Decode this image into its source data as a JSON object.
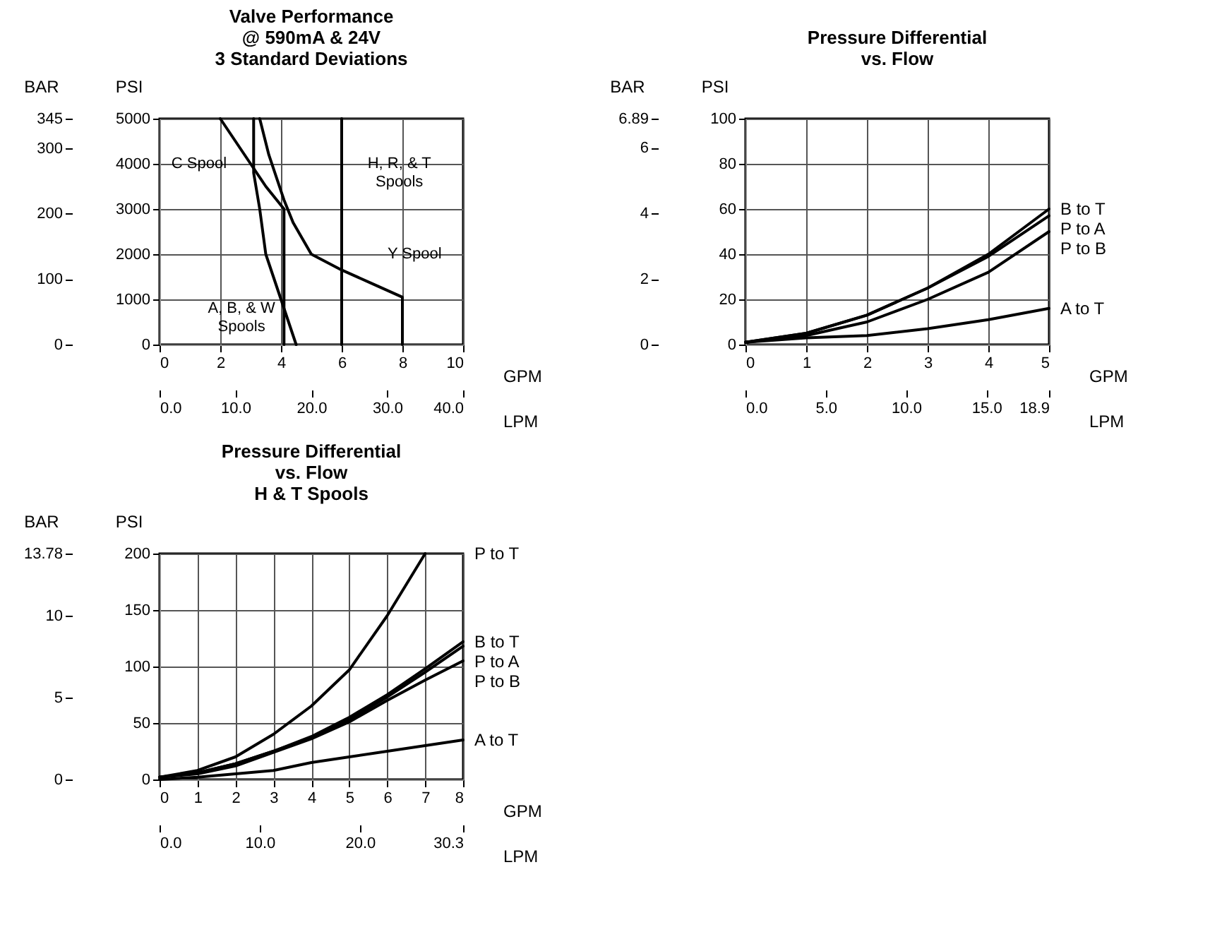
{
  "chart_data": [
    {
      "type": "line",
      "title": "Valve Performance\n@ 590mA & 24V\n3 Standard Deviations",
      "xlabel": "GPM",
      "x2label": "LPM",
      "ylabel": "PSI",
      "y2label": "BAR",
      "xlim": [
        0,
        10
      ],
      "xticks": [
        0,
        2,
        4,
        6,
        8,
        10
      ],
      "x2lim": [
        0,
        40
      ],
      "x2ticks": [
        {
          "value": 0,
          "label": "0.0"
        },
        {
          "value": 10,
          "label": "10.0"
        },
        {
          "value": 20,
          "label": "20.0"
        },
        {
          "value": 30,
          "label": "30.0"
        },
        {
          "value": 40,
          "label": "40.0"
        }
      ],
      "ylim": [
        0,
        5000
      ],
      "yticks": [
        0,
        1000,
        2000,
        3000,
        4000,
        5000
      ],
      "y2lim": [
        0,
        345
      ],
      "y2ticks": [
        0,
        100,
        200,
        300,
        345
      ],
      "grid": true,
      "legend": false,
      "series": [
        {
          "color": "#000000",
          "x": [
            2,
            2.5,
            3,
            3.5,
            4.1,
            4.1
          ],
          "values": [
            5000,
            4500,
            4000,
            3500,
            3000,
            0
          ]
        },
        {
          "color": "#000000",
          "x": [
            3.3,
            3.6,
            4.1,
            4.4,
            5,
            6,
            7,
            8,
            8
          ],
          "values": [
            5000,
            4200,
            3200,
            2700,
            2000,
            1650,
            1350,
            1050,
            0
          ]
        },
        {
          "color": "#000000",
          "x": [
            3.1,
            3.1,
            3.3,
            3.5,
            4,
            4.5
          ],
          "values": [
            5000,
            3800,
            3000,
            2000,
            1000,
            0
          ]
        },
        {
          "color": "#000000",
          "x": [
            6,
            6
          ],
          "values": [
            5000,
            0
          ]
        }
      ],
      "annotations": [
        "C Spool",
        "H, R, & T\nSpools",
        "Y Spool",
        "A, B, & W\nSpools"
      ]
    },
    {
      "type": "line",
      "title": "Pressure Differential\nvs. Flow",
      "xlabel": "GPM",
      "x2label": "LPM",
      "ylabel": "PSI",
      "y2label": "BAR",
      "xlim": [
        0,
        5
      ],
      "xticks": [
        0,
        1,
        2,
        3,
        4,
        5
      ],
      "x2lim": [
        0,
        18.9
      ],
      "x2ticks": [
        {
          "value": 0,
          "label": "0.0"
        },
        {
          "value": 5,
          "label": "5.0"
        },
        {
          "value": 10,
          "label": "10.0"
        },
        {
          "value": 15,
          "label": "15.0"
        },
        18.9
      ],
      "ylim": [
        0,
        100
      ],
      "yticks": [
        0,
        20,
        40,
        60,
        80,
        100
      ],
      "y2lim": [
        0,
        6.89
      ],
      "y2ticks": [
        0,
        2,
        4,
        6,
        6.89
      ],
      "grid": true,
      "legend": false,
      "x": [
        0,
        1,
        2,
        3,
        4,
        5
      ],
      "series": [
        {
          "name": "B to T",
          "color": "#000000",
          "values": [
            1,
            5,
            13,
            25,
            40,
            60
          ]
        },
        {
          "name": "P to A",
          "color": "#000000",
          "values": [
            1,
            5,
            13,
            25,
            39,
            57
          ]
        },
        {
          "name": "P to B",
          "color": "#000000",
          "values": [
            1,
            4,
            10,
            20,
            32,
            50
          ]
        },
        {
          "name": "A to T",
          "color": "#000000",
          "values": [
            1,
            3,
            4,
            7,
            11,
            16
          ]
        }
      ]
    },
    {
      "type": "line",
      "title": "Pressure Differential\nvs. Flow\nH & T Spools",
      "xlabel": "GPM",
      "x2label": "LPM",
      "ylabel": "PSI",
      "y2label": "BAR",
      "xlim": [
        0,
        8
      ],
      "xticks": [
        0,
        1,
        2,
        3,
        4,
        5,
        6,
        7,
        8
      ],
      "x2lim": [
        0,
        30.3
      ],
      "x2ticks": [
        {
          "value": 0,
          "label": "0.0"
        },
        {
          "value": 10,
          "label": "10.0"
        },
        {
          "value": 20,
          "label": "20.0"
        },
        30.3
      ],
      "ylim": [
        0,
        200
      ],
      "yticks": [
        0,
        50,
        100,
        150,
        200
      ],
      "y2lim": [
        0,
        13.78
      ],
      "y2ticks": [
        0,
        5,
        10,
        13.78
      ],
      "grid": true,
      "legend": false,
      "series": [
        {
          "name": "P to T",
          "color": "#000000",
          "x": [
            0,
            1,
            2,
            3,
            4,
            5,
            6,
            7
          ],
          "values": [
            2,
            8,
            20,
            40,
            65,
            97,
            145,
            200
          ]
        },
        {
          "name": "B to T",
          "color": "#000000",
          "x": [
            0,
            1,
            2,
            3,
            4,
            5,
            6,
            7,
            8
          ],
          "values": [
            2,
            6,
            14,
            25,
            38,
            55,
            75,
            98,
            122
          ]
        },
        {
          "name": "P to A",
          "color": "#000000",
          "x": [
            0,
            1,
            2,
            3,
            4,
            5,
            6,
            7,
            8
          ],
          "values": [
            2,
            6,
            14,
            25,
            37,
            53,
            73,
            95,
            118
          ]
        },
        {
          "name": "P to B",
          "color": "#000000",
          "x": [
            0,
            1,
            2,
            3,
            4,
            5,
            6,
            7,
            8
          ],
          "values": [
            2,
            5,
            12,
            24,
            36,
            51,
            70,
            88,
            105
          ]
        },
        {
          "name": "A to T",
          "color": "#000000",
          "x": [
            0,
            1,
            2,
            3,
            4,
            5,
            6,
            7,
            8
          ],
          "values": [
            0,
            2,
            5,
            8,
            15,
            20,
            25,
            30,
            35
          ]
        }
      ]
    }
  ]
}
